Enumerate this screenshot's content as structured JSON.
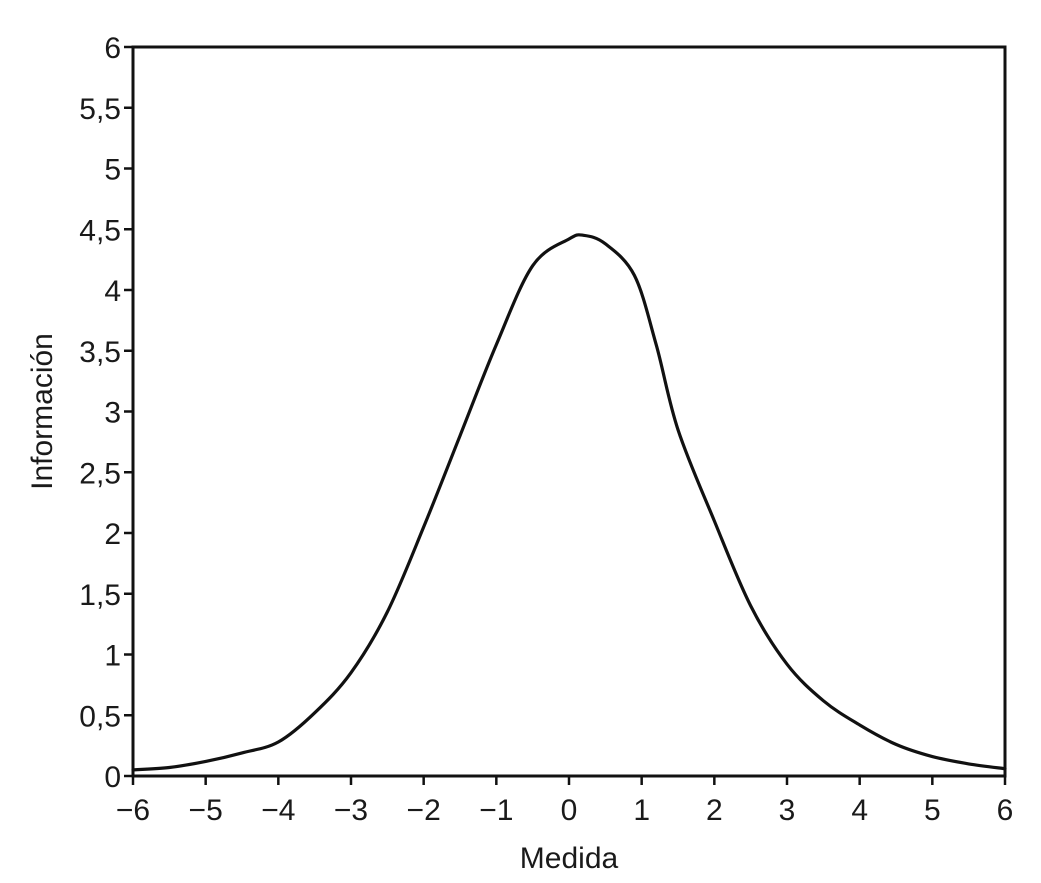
{
  "chart_data": {
    "type": "line",
    "title": "",
    "xlabel": "Medida",
    "ylabel": "Información",
    "xlim": [
      -6,
      6
    ],
    "ylim": [
      0,
      6
    ],
    "grid": false,
    "x_ticks": [
      -6,
      -5,
      -4,
      -3,
      -2,
      -1,
      0,
      1,
      2,
      3,
      4,
      5,
      6
    ],
    "x_tick_labels": [
      "−6",
      "−5",
      "−4",
      "−3",
      "−2",
      "−1",
      "0",
      "1",
      "2",
      "3",
      "4",
      "5",
      "6"
    ],
    "y_ticks": [
      0,
      0.5,
      1,
      1.5,
      2,
      2.5,
      3,
      3.5,
      4,
      4.5,
      5,
      5.5,
      6
    ],
    "y_tick_labels": [
      "0",
      "0,5",
      "1",
      "1,5",
      "2",
      "2,5",
      "3",
      "3,5",
      "4",
      "4,5",
      "5",
      "5,5",
      "6"
    ],
    "series": [
      {
        "color": "#111111",
        "x": [
          -6,
          -5.5,
          -5,
          -4.5,
          -4,
          -3.5,
          -3,
          -2.5,
          -2,
          -1.5,
          -1,
          -0.5,
          0,
          0.2,
          0.5,
          0.9,
          1.2,
          1.5,
          2,
          2.5,
          3,
          3.5,
          4,
          4.5,
          5,
          5.5,
          6
        ],
        "y": [
          0.05,
          0.07,
          0.12,
          0.19,
          0.28,
          0.52,
          0.85,
          1.35,
          2.05,
          2.8,
          3.55,
          4.2,
          4.42,
          4.45,
          4.38,
          4.12,
          3.55,
          2.85,
          2.1,
          1.4,
          0.92,
          0.62,
          0.42,
          0.26,
          0.16,
          0.1,
          0.06
        ]
      }
    ]
  }
}
